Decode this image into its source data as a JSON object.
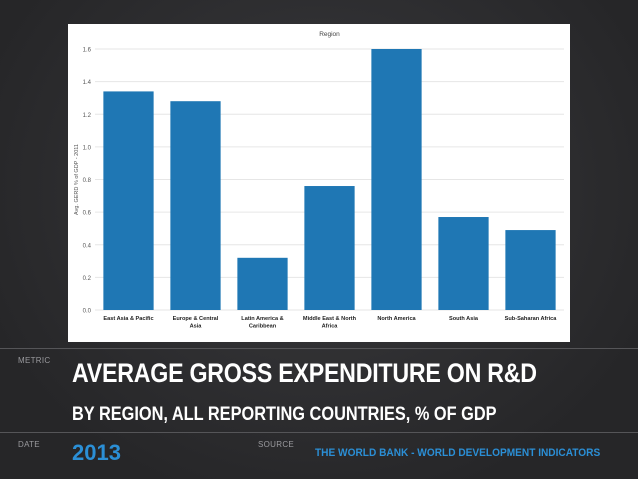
{
  "labels": {
    "metric": "METRIC",
    "date": "DATE",
    "source": "SOURCE"
  },
  "title": "AVERAGE GROSS EXPENDITURE ON R&D",
  "subtitle": "BY REGION, ALL REPORTING COUNTRIES, % OF GDP",
  "date_value": "2013",
  "source_value": "THE WORLD BANK - WORLD DEVELOPMENT INDICATORS",
  "colors": {
    "bar": "#1f77b4",
    "accent": "#2b8fd6"
  },
  "chart_data": {
    "type": "bar",
    "title": "Region",
    "ylabel": "Avg. GERD % of GDP - 2011",
    "xlabel": "",
    "categories": [
      [
        "East Asia & Pacific"
      ],
      [
        "Europe & Central",
        "Asia"
      ],
      [
        "Latin America &",
        "Caribbean"
      ],
      [
        "Middle East & North",
        "Africa"
      ],
      [
        "North America"
      ],
      [
        "South Asia"
      ],
      [
        "Sub-Saharan Africa"
      ]
    ],
    "values": [
      1.34,
      1.28,
      0.32,
      0.76,
      1.6,
      0.57,
      0.49
    ],
    "ylim": [
      0,
      1.6
    ],
    "yticks": [
      "0.0",
      "0.2",
      "0.4",
      "0.6",
      "0.8",
      "1.0",
      "1.2",
      "1.4",
      "1.6"
    ],
    "grid": true
  }
}
